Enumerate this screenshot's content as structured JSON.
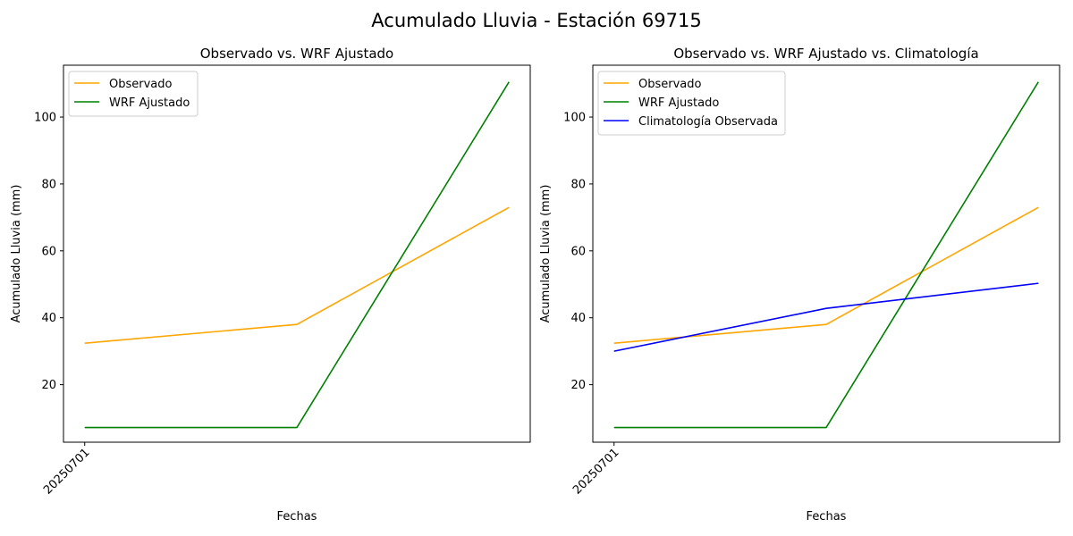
{
  "figure": {
    "suptitle": "Acumulado Lluvia - Estación 69715"
  },
  "chart_data": [
    {
      "type": "line",
      "title": "Observado vs. WRF Ajustado",
      "xlabel": "Fechas",
      "ylabel": "Acumulado Lluvia (mm)",
      "x_tick_labels": [
        "20250701"
      ],
      "x_tick_rotation": 45,
      "x": [
        0,
        1,
        2
      ],
      "xlim": [
        -0.1,
        2.1
      ],
      "ylim": [
        2.8,
        115.5
      ],
      "y_ticks": [
        20,
        40,
        60,
        80,
        100
      ],
      "grid": false,
      "legend_loc": "upper left",
      "series": [
        {
          "name": "Observado",
          "color": "#FFA500",
          "values": [
            32.4,
            38.0,
            73.0
          ]
        },
        {
          "name": "WRF Ajustado",
          "color": "#008000",
          "values": [
            7.2,
            7.2,
            110.5
          ]
        }
      ]
    },
    {
      "type": "line",
      "title": "Observado vs. WRF Ajustado vs. Climatología",
      "xlabel": "Fechas",
      "ylabel": "Acumulado Lluvia (mm)",
      "x_tick_labels": [
        "20250701"
      ],
      "x_tick_rotation": 45,
      "x": [
        0,
        1,
        2
      ],
      "xlim": [
        -0.1,
        2.1
      ],
      "ylim": [
        2.8,
        115.5
      ],
      "y_ticks": [
        20,
        40,
        60,
        80,
        100
      ],
      "grid": false,
      "legend_loc": "upper left",
      "series": [
        {
          "name": "Observado",
          "color": "#FFA500",
          "values": [
            32.4,
            38.0,
            73.0
          ]
        },
        {
          "name": "WRF Ajustado",
          "color": "#008000",
          "values": [
            7.2,
            7.2,
            110.5
          ]
        },
        {
          "name": "Climatología Observada",
          "color": "#0000FF",
          "values": [
            30.0,
            42.8,
            50.3
          ]
        }
      ]
    }
  ]
}
